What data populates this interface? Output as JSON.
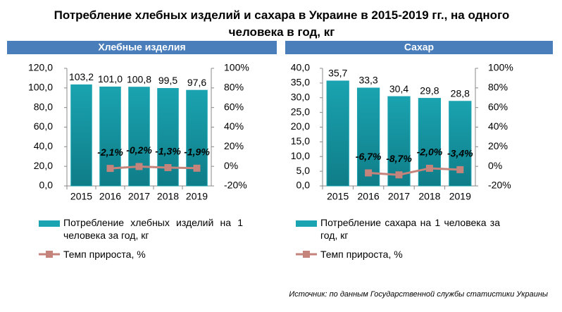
{
  "title": "Потребление хлебных изделий и сахара в Украине в 2015-2019 гг., на одного человека в год, кг",
  "source": "Источник: по данным Государственной службы статистики Украины",
  "chart_data": [
    {
      "type": "bar",
      "title": "Хлебные изделия",
      "categories": [
        "2015",
        "2016",
        "2017",
        "2018",
        "2019"
      ],
      "series": [
        {
          "name": "Потребление хлебных изделий на 1 человека за год, кг",
          "color": "#1aa3b0",
          "type": "bar",
          "values": [
            103.2,
            101.0,
            100.8,
            99.5,
            97.6
          ],
          "value_labels": [
            "103,2",
            "101,0",
            "100,8",
            "99,5",
            "97,6"
          ]
        },
        {
          "name": "Темп прироста, %",
          "color": "#c4837b",
          "type": "line",
          "axis": "y2",
          "values": [
            null,
            -2.1,
            -0.2,
            -1.3,
            -1.9
          ],
          "value_labels": [
            null,
            "-2,1%",
            "-0,2%",
            "-1,3%",
            "-1,9%"
          ]
        }
      ],
      "ylim": [
        0,
        120
      ],
      "yticks": [
        {
          "value": 0,
          "label": "0,0"
        },
        {
          "value": 20,
          "label": "20,0"
        },
        {
          "value": 40,
          "label": "40,0"
        },
        {
          "value": 60,
          "label": "60,0"
        },
        {
          "value": 80,
          "label": "80,0"
        },
        {
          "value": 100,
          "label": "100,0"
        },
        {
          "value": 120,
          "label": "120,0"
        }
      ],
      "y2lim": [
        -20,
        100
      ],
      "y2ticks": [
        {
          "value": -20,
          "label": "-20%"
        },
        {
          "value": 0,
          "label": "0%"
        },
        {
          "value": 20,
          "label": "20%"
        },
        {
          "value": 40,
          "label": "40%"
        },
        {
          "value": 60,
          "label": "60%"
        },
        {
          "value": 80,
          "label": "80%"
        },
        {
          "value": 100,
          "label": "100%"
        }
      ]
    },
    {
      "type": "bar",
      "title": "Сахар",
      "categories": [
        "2015",
        "2016",
        "2017",
        "2018",
        "2019"
      ],
      "series": [
        {
          "name": "Потребление сахара на 1 человека за год, кг",
          "color": "#1aa3b0",
          "type": "bar",
          "values": [
            35.7,
            33.3,
            30.4,
            29.8,
            28.8
          ],
          "value_labels": [
            "35,7",
            "33,3",
            "30,4",
            "29,8",
            "28,8"
          ]
        },
        {
          "name": "Темп прироста, %",
          "color": "#c4837b",
          "type": "line",
          "axis": "y2",
          "values": [
            null,
            -6.7,
            -8.7,
            -2.0,
            -3.4
          ],
          "value_labels": [
            null,
            "-6,7%",
            "-8,7%",
            "-2,0%",
            "-3,4%"
          ]
        }
      ],
      "ylim": [
        0,
        40
      ],
      "yticks": [
        {
          "value": 0,
          "label": "0,0"
        },
        {
          "value": 5,
          "label": "5,0"
        },
        {
          "value": 10,
          "label": "10,0"
        },
        {
          "value": 15,
          "label": "15,0"
        },
        {
          "value": 20,
          "label": "20,0"
        },
        {
          "value": 25,
          "label": "25,0"
        },
        {
          "value": 30,
          "label": "30,0"
        },
        {
          "value": 35,
          "label": "35,0"
        },
        {
          "value": 40,
          "label": "40,0"
        }
      ],
      "y2lim": [
        -20,
        100
      ],
      "y2ticks": [
        {
          "value": -20,
          "label": "-20%"
        },
        {
          "value": 0,
          "label": "0%"
        },
        {
          "value": 20,
          "label": "20%"
        },
        {
          "value": 40,
          "label": "40%"
        },
        {
          "value": 60,
          "label": "60%"
        },
        {
          "value": 80,
          "label": "80%"
        },
        {
          "value": 100,
          "label": "100%"
        }
      ]
    }
  ]
}
